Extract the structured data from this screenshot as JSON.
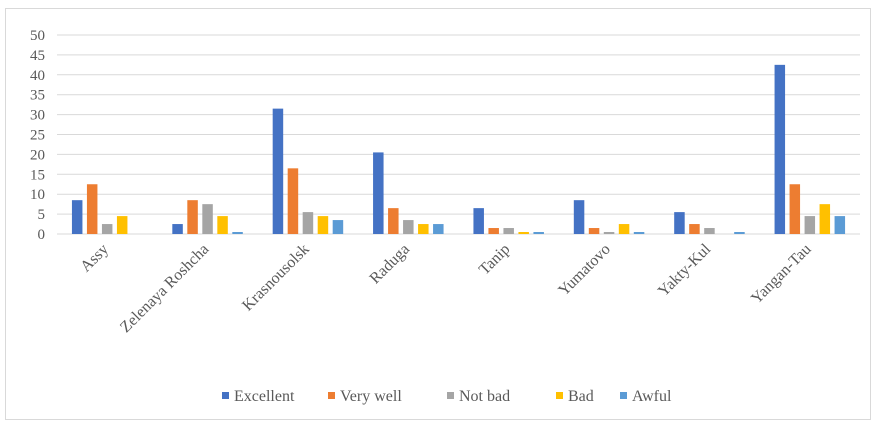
{
  "chart_data": {
    "type": "bar",
    "title": "",
    "xlabel": "",
    "ylabel": "",
    "ylim": [
      0,
      50
    ],
    "yticks": [
      0,
      5,
      10,
      15,
      20,
      25,
      30,
      35,
      40,
      45,
      50
    ],
    "grid": true,
    "legend_position": "bottom",
    "categories": [
      "Assy",
      "Zelenaya Roshcha",
      "Krasnousolsk",
      "Raduga",
      "Tanip",
      "Yumatovo",
      "Yakty-Kul",
      "Yangan-Tau"
    ],
    "series": [
      {
        "name": "Excellent",
        "color": "#4472C4",
        "values": [
          8.5,
          2.5,
          31.5,
          20.5,
          6.5,
          8.5,
          5.5,
          42.5
        ]
      },
      {
        "name": "Very well",
        "color": "#ED7D31",
        "values": [
          12.5,
          8.5,
          16.5,
          6.5,
          1.5,
          1.5,
          2.5,
          12.5
        ]
      },
      {
        "name": "Not bad",
        "color": "#A5A5A5",
        "values": [
          2.5,
          7.5,
          5.5,
          3.5,
          1.5,
          0.5,
          1.5,
          4.5
        ]
      },
      {
        "name": "Bad",
        "color": "#FFC000",
        "values": [
          4.5,
          4.5,
          4.5,
          2.5,
          0.5,
          2.5,
          0,
          7.5
        ]
      },
      {
        "name": "Awful",
        "color": "#5B9BD5",
        "values": [
          0,
          0.5,
          3.5,
          2.5,
          0.5,
          0.5,
          0.5,
          4.5
        ]
      }
    ]
  }
}
